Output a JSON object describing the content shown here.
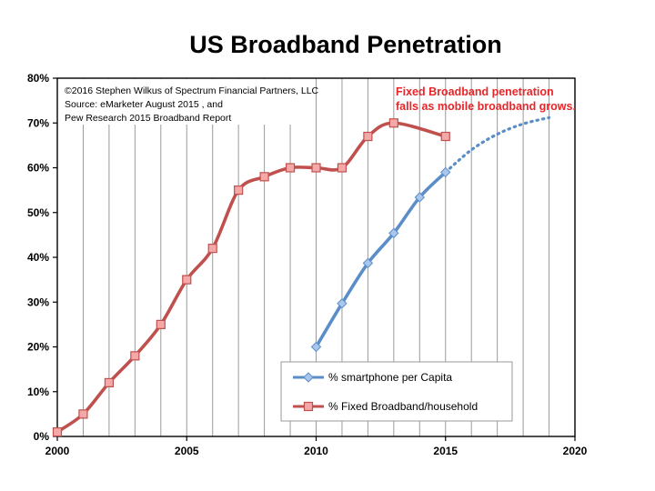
{
  "chart_data": {
    "type": "line",
    "title": "US Broadband Penetration",
    "xlabel": "",
    "ylabel": "",
    "xlim": [
      2000,
      2020
    ],
    "ylim": [
      0,
      80
    ],
    "x_ticks": [
      "2000",
      "2005",
      "2010",
      "2015",
      "2020"
    ],
    "y_ticks": [
      "0%",
      "10%",
      "20%",
      "30%",
      "40%",
      "50%",
      "60%",
      "70%",
      "80%"
    ],
    "grid": "vertical gridlines every year",
    "credit_lines": [
      "©2016 Stephen Wilkus of Spectrum Financial Partners, LLC",
      "Source: eMarketer August 2015 , and",
      "Pew Research 2015 Broadband Report"
    ],
    "annotation_lines": [
      "Fixed Broadband penetration",
      "falls as mobile broadband grows."
    ],
    "legend_placement": "bottom-center",
    "series": [
      {
        "name": "% smartphone per Capita",
        "color": "#5b8ec9",
        "marker": "diamond",
        "x": [
          2010,
          2011,
          2012,
          2013,
          2014,
          2015
        ],
        "values": [
          20,
          29.7,
          38.7,
          45.4,
          53.4,
          59
        ]
      },
      {
        "name": "% Fixed Broadband/household",
        "color": "#c0504d",
        "marker_fill": "#f4a9a8",
        "marker": "square",
        "x": [
          2000,
          2001,
          2002,
          2003,
          2004,
          2005,
          2006,
          2007,
          2008,
          2009,
          2010,
          2011,
          2012,
          2013,
          2015
        ],
        "values": [
          1,
          5,
          12,
          18,
          25,
          35,
          42,
          55,
          58,
          60,
          60,
          60,
          67,
          70,
          67
        ]
      }
    ],
    "projection": {
      "color": "#5b8ec9",
      "style": "dotted",
      "x": [
        2015,
        2016,
        2017,
        2018,
        2019
      ],
      "values": [
        59,
        64,
        67.5,
        69.8,
        71.2
      ]
    }
  }
}
